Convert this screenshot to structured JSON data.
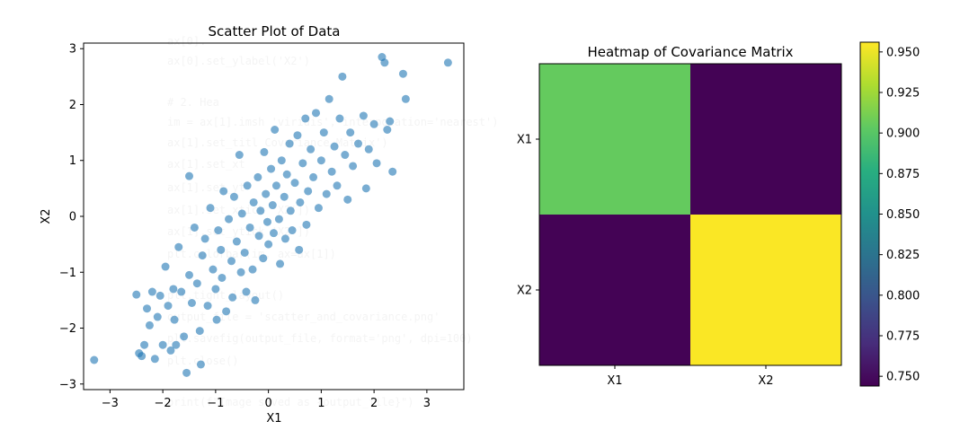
{
  "chart_data": [
    {
      "type": "scatter",
      "title": "Scatter Plot of Data",
      "xlabel": "X1",
      "ylabel": "X2",
      "xlim": [
        -3.5,
        3.7
      ],
      "ylim": [
        -3.1,
        3.1
      ],
      "xticks": [
        "−3",
        "−2",
        "−1",
        "0",
        "1",
        "2",
        "3"
      ],
      "yticks": [
        "−3",
        "−2",
        "−1",
        "0",
        "1",
        "2",
        "3"
      ],
      "xtick_values": [
        -3,
        -2,
        -1,
        0,
        1,
        2,
        3
      ],
      "ytick_values": [
        -3,
        -2,
        -1,
        0,
        1,
        2,
        3
      ],
      "grid": false,
      "point_color": "#1f77b4",
      "point_alpha": 0.6,
      "series": [
        {
          "points": [
            [
              -3.3,
              -2.57
            ],
            [
              -2.5,
              -1.4
            ],
            [
              -2.45,
              -2.45
            ],
            [
              -2.4,
              -2.5
            ],
            [
              -2.35,
              -2.3
            ],
            [
              -2.3,
              -1.65
            ],
            [
              -2.25,
              -1.95
            ],
            [
              -2.2,
              -1.35
            ],
            [
              -2.15,
              -2.55
            ],
            [
              -2.1,
              -1.8
            ],
            [
              -2.05,
              -1.42
            ],
            [
              -2.0,
              -2.3
            ],
            [
              -1.95,
              -0.9
            ],
            [
              -1.9,
              -1.6
            ],
            [
              -1.85,
              -2.4
            ],
            [
              -1.8,
              -1.3
            ],
            [
              -1.78,
              -1.85
            ],
            [
              -1.75,
              -2.3
            ],
            [
              -1.7,
              -0.55
            ],
            [
              -1.65,
              -1.35
            ],
            [
              -1.6,
              -2.15
            ],
            [
              -1.55,
              -2.8
            ],
            [
              -1.5,
              0.72
            ],
            [
              -1.5,
              -1.05
            ],
            [
              -1.45,
              -1.55
            ],
            [
              -1.4,
              -0.2
            ],
            [
              -1.35,
              -1.2
            ],
            [
              -1.3,
              -2.05
            ],
            [
              -1.28,
              -2.65
            ],
            [
              -1.25,
              -0.7
            ],
            [
              -1.2,
              -0.4
            ],
            [
              -1.15,
              -1.6
            ],
            [
              -1.1,
              0.15
            ],
            [
              -1.05,
              -0.95
            ],
            [
              -1.0,
              -1.3
            ],
            [
              -0.98,
              -1.85
            ],
            [
              -0.95,
              -0.25
            ],
            [
              -0.9,
              -0.6
            ],
            [
              -0.88,
              -1.1
            ],
            [
              -0.85,
              0.45
            ],
            [
              -0.8,
              -1.7
            ],
            [
              -0.75,
              -0.05
            ],
            [
              -0.7,
              -0.8
            ],
            [
              -0.68,
              -1.45
            ],
            [
              -0.65,
              0.35
            ],
            [
              -0.6,
              -0.45
            ],
            [
              -0.55,
              1.1
            ],
            [
              -0.52,
              -1.0
            ],
            [
              -0.5,
              0.05
            ],
            [
              -0.45,
              -0.65
            ],
            [
              -0.42,
              -1.35
            ],
            [
              -0.4,
              0.55
            ],
            [
              -0.35,
              -0.2
            ],
            [
              -0.3,
              -0.95
            ],
            [
              -0.28,
              0.25
            ],
            [
              -0.25,
              -1.5
            ],
            [
              -0.2,
              0.7
            ],
            [
              -0.18,
              -0.35
            ],
            [
              -0.15,
              0.1
            ],
            [
              -0.1,
              -0.75
            ],
            [
              -0.08,
              1.15
            ],
            [
              -0.05,
              0.4
            ],
            [
              -0.02,
              -0.1
            ],
            [
              0.0,
              -0.5
            ],
            [
              0.05,
              0.85
            ],
            [
              0.08,
              0.2
            ],
            [
              0.1,
              -0.3
            ],
            [
              0.12,
              1.55
            ],
            [
              0.15,
              0.55
            ],
            [
              0.2,
              -0.05
            ],
            [
              0.22,
              -0.85
            ],
            [
              0.25,
              1.0
            ],
            [
              0.3,
              0.35
            ],
            [
              0.32,
              -0.4
            ],
            [
              0.35,
              0.75
            ],
            [
              0.4,
              1.3
            ],
            [
              0.42,
              0.1
            ],
            [
              0.45,
              -0.25
            ],
            [
              0.5,
              0.6
            ],
            [
              0.55,
              1.45
            ],
            [
              0.58,
              -0.6
            ],
            [
              0.6,
              0.25
            ],
            [
              0.65,
              0.95
            ],
            [
              0.7,
              1.75
            ],
            [
              0.72,
              -0.15
            ],
            [
              0.75,
              0.45
            ],
            [
              0.8,
              1.2
            ],
            [
              0.85,
              0.7
            ],
            [
              0.9,
              1.85
            ],
            [
              0.95,
              0.15
            ],
            [
              1.0,
              1.0
            ],
            [
              1.05,
              1.5
            ],
            [
              1.1,
              0.4
            ],
            [
              1.15,
              2.1
            ],
            [
              1.2,
              0.8
            ],
            [
              1.25,
              1.25
            ],
            [
              1.3,
              0.55
            ],
            [
              1.35,
              1.75
            ],
            [
              1.4,
              2.5
            ],
            [
              1.45,
              1.1
            ],
            [
              1.5,
              0.3
            ],
            [
              1.55,
              1.5
            ],
            [
              1.6,
              0.9
            ],
            [
              1.7,
              1.3
            ],
            [
              1.8,
              1.8
            ],
            [
              1.85,
              0.5
            ],
            [
              1.9,
              1.2
            ],
            [
              2.0,
              1.65
            ],
            [
              2.05,
              0.95
            ],
            [
              2.15,
              2.85
            ],
            [
              2.2,
              2.75
            ],
            [
              2.25,
              1.55
            ],
            [
              2.3,
              1.7
            ],
            [
              2.35,
              0.8
            ],
            [
              2.55,
              2.55
            ],
            [
              2.6,
              2.1
            ],
            [
              3.4,
              2.75
            ]
          ]
        }
      ]
    },
    {
      "type": "heatmap",
      "title": "Heatmap of Covariance Matrix",
      "xticks": [
        "X1",
        "X2"
      ],
      "yticks": [
        "X1",
        "X2"
      ],
      "values": [
        [
          0.905,
          0.745
        ],
        [
          0.745,
          0.955
        ]
      ],
      "colormap": "viridis",
      "colorbar_range": [
        0.744,
        0.956
      ],
      "colorbar_ticks": [
        "0.750",
        "0.775",
        "0.800",
        "0.825",
        "0.850",
        "0.875",
        "0.900",
        "0.925",
        "0.950"
      ],
      "colorbar_tick_values": [
        0.75,
        0.775,
        0.8,
        0.825,
        0.85,
        0.875,
        0.9,
        0.925,
        0.95
      ]
    }
  ]
}
